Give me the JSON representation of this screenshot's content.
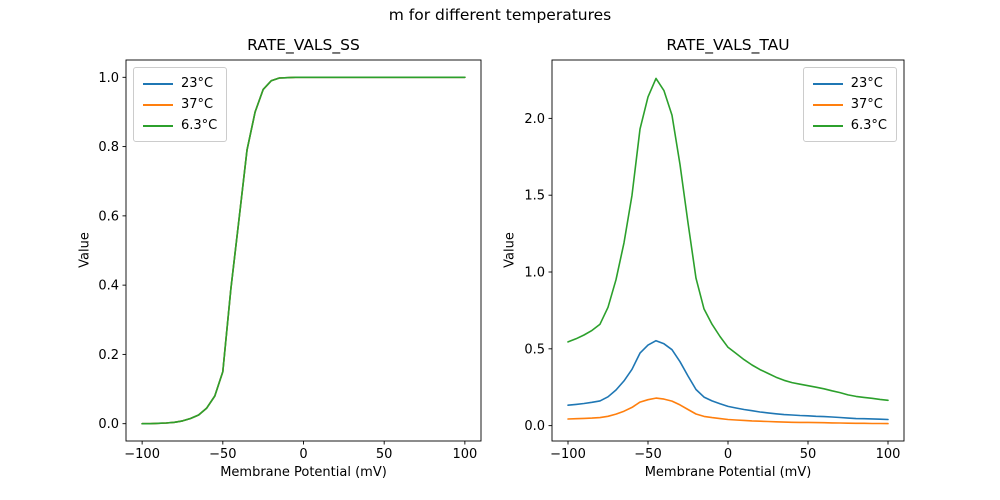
{
  "figure": {
    "suptitle": "m for different temperatures",
    "background": "#ffffff",
    "text_color": "#000000"
  },
  "chart_data": [
    {
      "type": "line",
      "title": "RATE_VALS_SS",
      "xlabel": "Membrane Potential (mV)",
      "ylabel": "Value",
      "xlim": [
        -110,
        110
      ],
      "ylim": [
        -0.05,
        1.05
      ],
      "xticks": [
        -100,
        -50,
        0,
        50,
        100
      ],
      "xtick_labels": [
        "−100",
        "−50",
        "0",
        "50",
        "100"
      ],
      "yticks": [
        0.0,
        0.2,
        0.4,
        0.6,
        0.8,
        1.0
      ],
      "ytick_labels": [
        "0.0",
        "0.2",
        "0.4",
        "0.6",
        "0.8",
        "1.0"
      ],
      "grid": false,
      "legend_loc": "upper left",
      "note": "sigmoid steady-state activation; the three temperature curves overlap exactly, so only the green 6.3°C curve (drawn last) is visible; half-activation near −43 mV",
      "x": [
        -100,
        -95,
        -90,
        -85,
        -80,
        -75,
        -70,
        -65,
        -60,
        -55,
        -50,
        -45,
        -40,
        -35,
        -30,
        -25,
        -20,
        -15,
        -10,
        -5,
        0,
        5,
        10,
        15,
        20,
        25,
        30,
        35,
        40,
        45,
        50,
        55,
        60,
        65,
        70,
        75,
        80,
        85,
        90,
        95,
        100
      ],
      "series": [
        {
          "name": "23°C",
          "color": "#1f77b4",
          "values": [
            0.0,
            0.0,
            0.001,
            0.002,
            0.004,
            0.008,
            0.015,
            0.025,
            0.045,
            0.08,
            0.15,
            0.39,
            0.59,
            0.79,
            0.9,
            0.965,
            0.99,
            0.998,
            0.999,
            1.0,
            1.0,
            1.0,
            1.0,
            1.0,
            1.0,
            1.0,
            1.0,
            1.0,
            1.0,
            1.0,
            1.0,
            1.0,
            1.0,
            1.0,
            1.0,
            1.0,
            1.0,
            1.0,
            1.0,
            1.0,
            1.0
          ]
        },
        {
          "name": "37°C",
          "color": "#ff7f0e",
          "values": [
            0.0,
            0.0,
            0.001,
            0.002,
            0.004,
            0.008,
            0.015,
            0.025,
            0.045,
            0.08,
            0.15,
            0.39,
            0.59,
            0.79,
            0.9,
            0.965,
            0.99,
            0.998,
            0.999,
            1.0,
            1.0,
            1.0,
            1.0,
            1.0,
            1.0,
            1.0,
            1.0,
            1.0,
            1.0,
            1.0,
            1.0,
            1.0,
            1.0,
            1.0,
            1.0,
            1.0,
            1.0,
            1.0,
            1.0,
            1.0,
            1.0
          ]
        },
        {
          "name": "6.3°C",
          "color": "#2ca02c",
          "values": [
            0.0,
            0.0,
            0.001,
            0.002,
            0.004,
            0.008,
            0.015,
            0.025,
            0.045,
            0.08,
            0.15,
            0.39,
            0.59,
            0.79,
            0.9,
            0.965,
            0.99,
            0.998,
            0.999,
            1.0,
            1.0,
            1.0,
            1.0,
            1.0,
            1.0,
            1.0,
            1.0,
            1.0,
            1.0,
            1.0,
            1.0,
            1.0,
            1.0,
            1.0,
            1.0,
            1.0,
            1.0,
            1.0,
            1.0,
            1.0,
            1.0
          ]
        }
      ]
    },
    {
      "type": "line",
      "title": "RATE_VALS_TAU",
      "xlabel": "Membrane Potential (mV)",
      "ylabel": "Value",
      "xlim": [
        -110,
        110
      ],
      "ylim": [
        -0.1,
        2.38
      ],
      "xticks": [
        -100,
        -50,
        0,
        50,
        100
      ],
      "xtick_labels": [
        "−100",
        "−50",
        "0",
        "50",
        "100"
      ],
      "yticks": [
        0.0,
        0.5,
        1.0,
        1.5,
        2.0
      ],
      "ytick_labels": [
        "0.0",
        "0.5",
        "1.0",
        "1.5",
        "2.0"
      ],
      "grid": false,
      "legend_loc": "upper right",
      "note": "time-constant curves peaking near −45 mV; peaks ≈ 2.26 (6.3°C), 0.55 (23°C), 0.18 (37°C)",
      "x": [
        -100,
        -95,
        -90,
        -85,
        -80,
        -75,
        -70,
        -65,
        -60,
        -55,
        -50,
        -45,
        -40,
        -35,
        -30,
        -25,
        -20,
        -15,
        -10,
        -5,
        0,
        5,
        10,
        15,
        20,
        25,
        30,
        35,
        40,
        45,
        50,
        55,
        60,
        65,
        70,
        75,
        80,
        85,
        90,
        95,
        100
      ],
      "series": [
        {
          "name": "23°C",
          "color": "#1f77b4",
          "values": [
            0.133,
            0.138,
            0.144,
            0.152,
            0.161,
            0.188,
            0.232,
            0.291,
            0.367,
            0.472,
            0.524,
            0.553,
            0.533,
            0.494,
            0.416,
            0.323,
            0.235,
            0.186,
            0.161,
            0.142,
            0.125,
            0.115,
            0.105,
            0.097,
            0.089,
            0.083,
            0.077,
            0.072,
            0.069,
            0.066,
            0.064,
            0.061,
            0.059,
            0.056,
            0.053,
            0.049,
            0.046,
            0.045,
            0.044,
            0.042,
            0.04
          ]
        },
        {
          "name": "37°C",
          "color": "#ff7f0e",
          "values": [
            0.043,
            0.045,
            0.047,
            0.049,
            0.052,
            0.061,
            0.075,
            0.094,
            0.119,
            0.153,
            0.169,
            0.179,
            0.173,
            0.16,
            0.135,
            0.105,
            0.076,
            0.06,
            0.052,
            0.046,
            0.04,
            0.037,
            0.034,
            0.031,
            0.029,
            0.027,
            0.025,
            0.023,
            0.022,
            0.021,
            0.021,
            0.02,
            0.019,
            0.018,
            0.017,
            0.016,
            0.015,
            0.015,
            0.014,
            0.014,
            0.013
          ]
        },
        {
          "name": "6.3°C",
          "color": "#2ca02c",
          "values": [
            0.545,
            0.565,
            0.59,
            0.62,
            0.66,
            0.77,
            0.95,
            1.19,
            1.5,
            1.93,
            2.14,
            2.26,
            2.18,
            2.02,
            1.7,
            1.32,
            0.96,
            0.76,
            0.66,
            0.58,
            0.51,
            0.47,
            0.43,
            0.395,
            0.365,
            0.34,
            0.315,
            0.295,
            0.28,
            0.27,
            0.26,
            0.25,
            0.24,
            0.227,
            0.215,
            0.2,
            0.19,
            0.184,
            0.178,
            0.171,
            0.165
          ]
        }
      ]
    }
  ]
}
